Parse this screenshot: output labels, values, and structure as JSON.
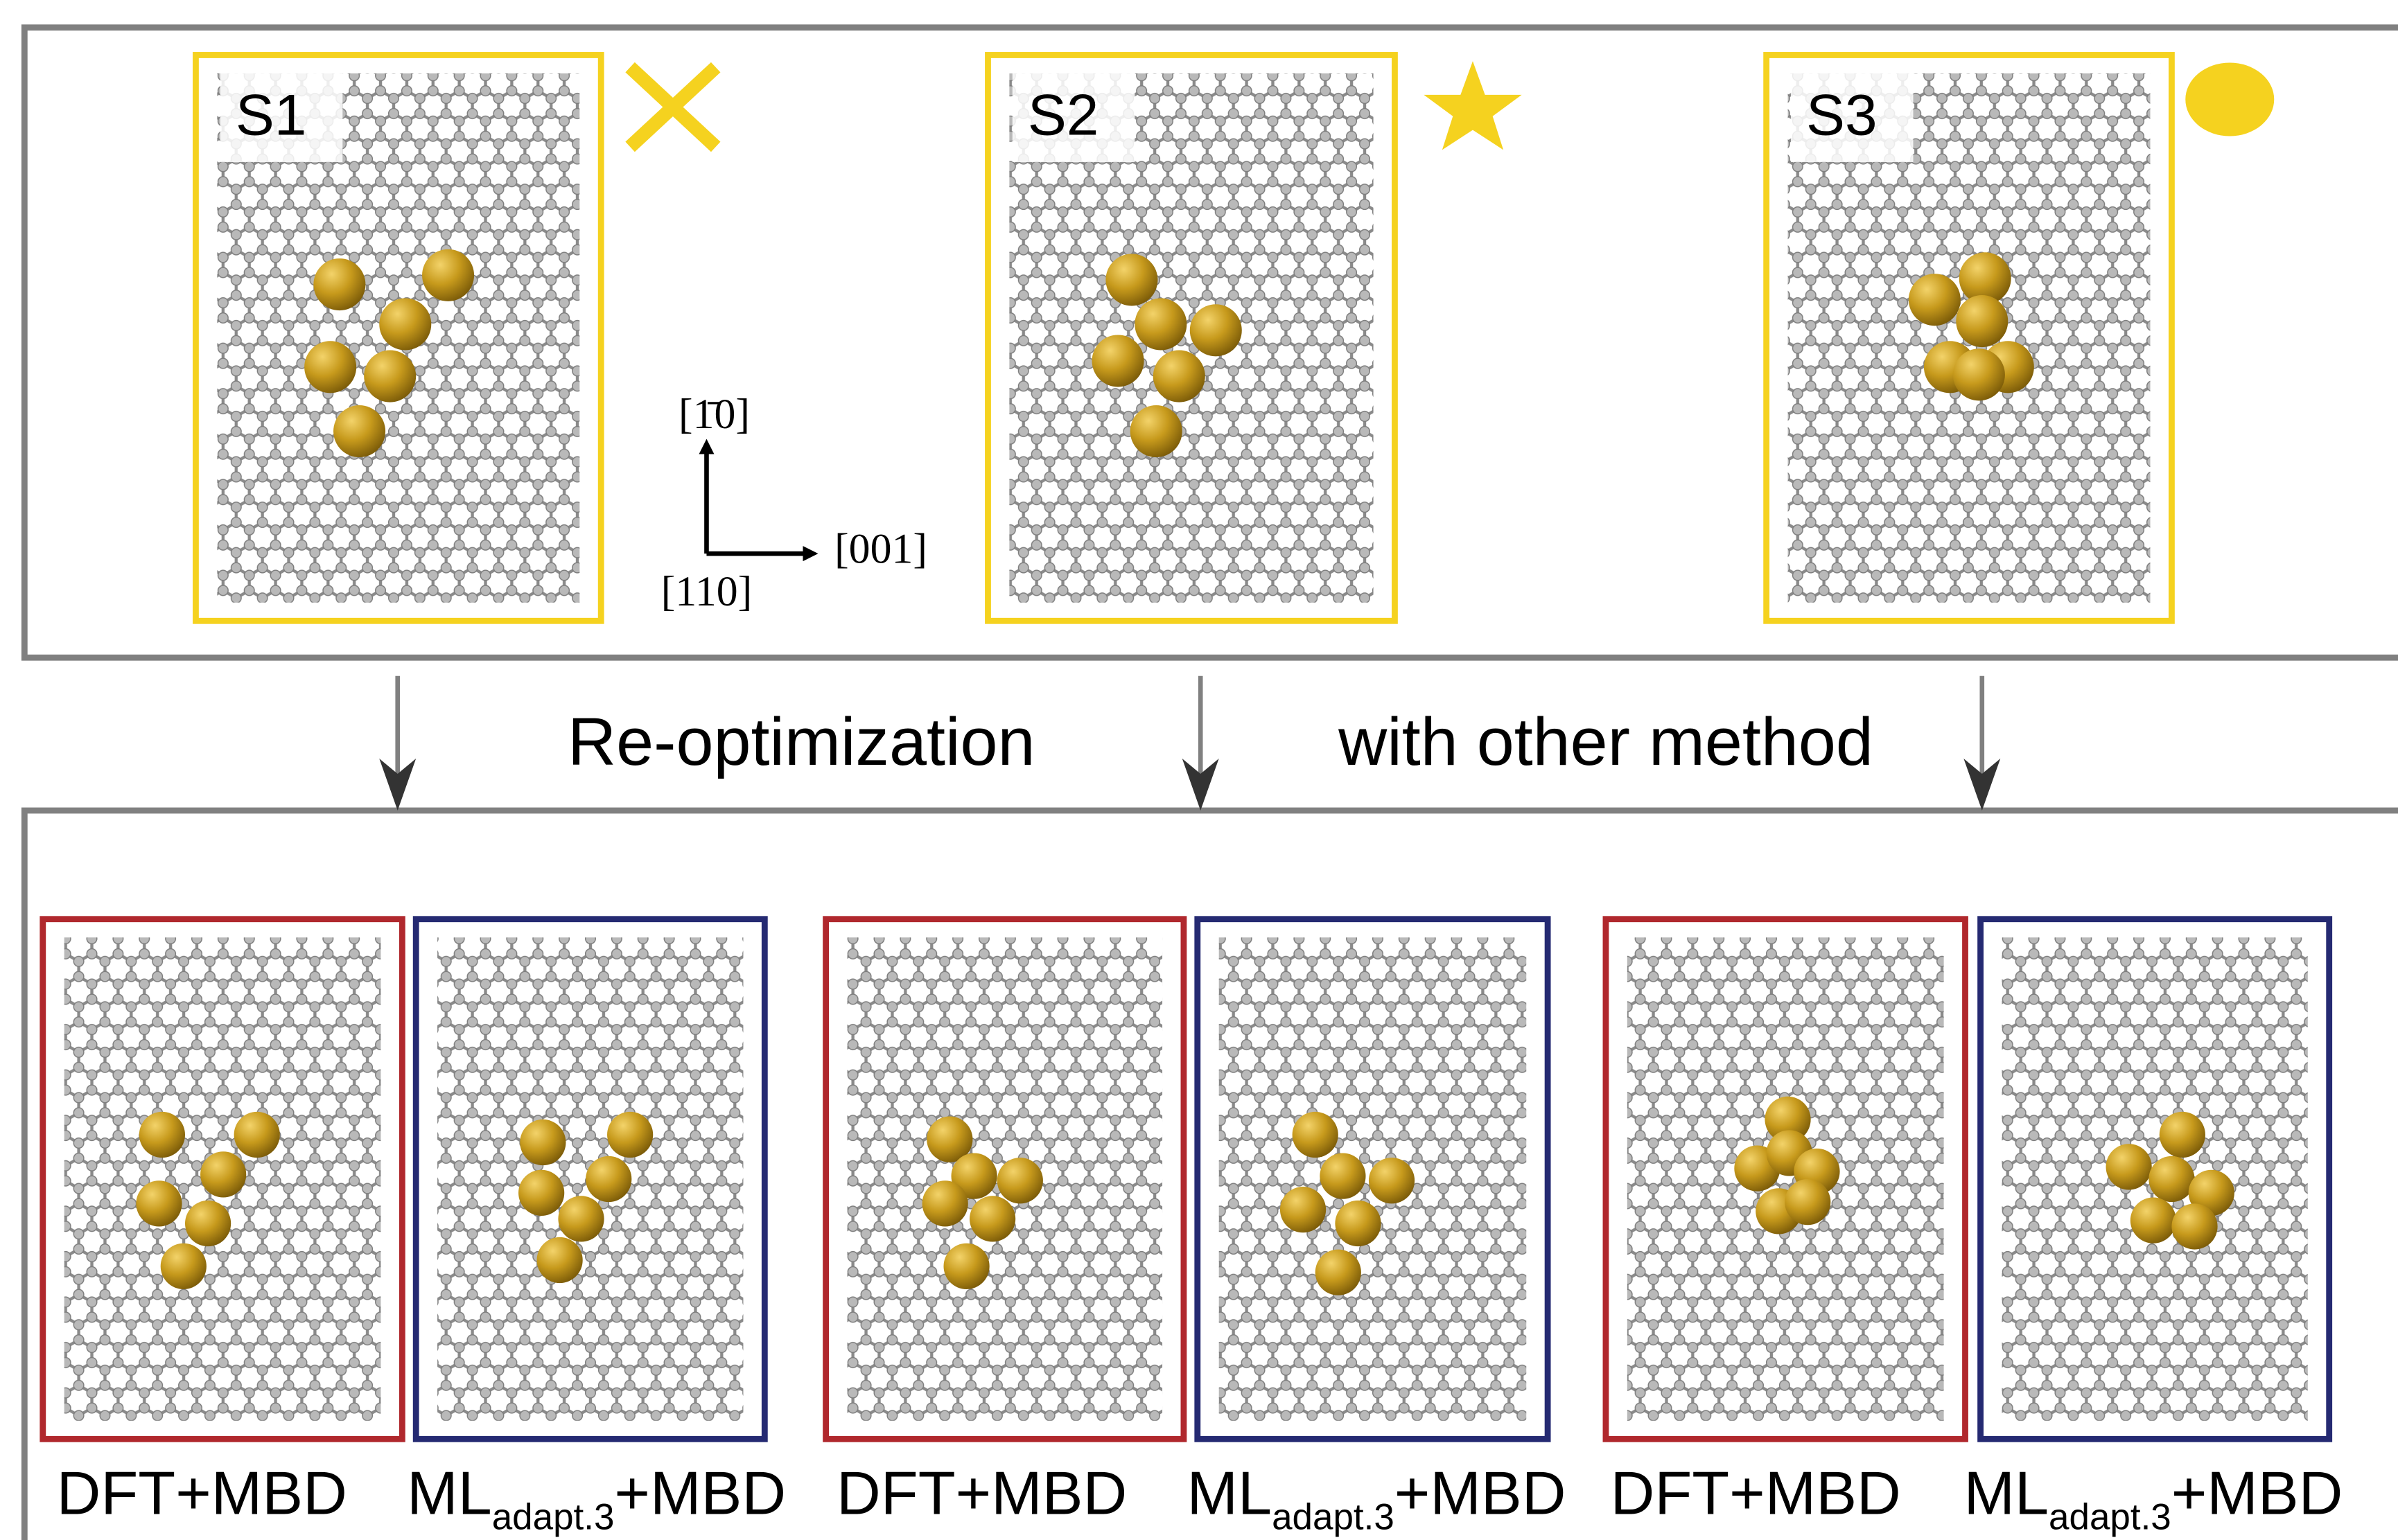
{
  "top_structures": [
    {
      "label": "S1"
    },
    {
      "label": "S2"
    },
    {
      "label": "S3"
    }
  ],
  "axes": {
    "up": "[1̄0]",
    "right": "[001]",
    "normal": "[110]"
  },
  "reoptimization_caption": [
    "Re-optimization",
    "with other method"
  ],
  "bottom_captions": [
    {
      "text": "DFT+MBD"
    },
    {
      "base": "ML",
      "subscript": "adapt.3",
      "suffix": "+MBD"
    },
    {
      "text": "DFT+MBD"
    },
    {
      "base": "ML",
      "subscript": "adapt.3",
      "suffix": "+MBD"
    },
    {
      "text": "DFT+MBD"
    },
    {
      "base": "ML",
      "subscript": "adapt.3",
      "suffix": "+MBD"
    }
  ]
}
